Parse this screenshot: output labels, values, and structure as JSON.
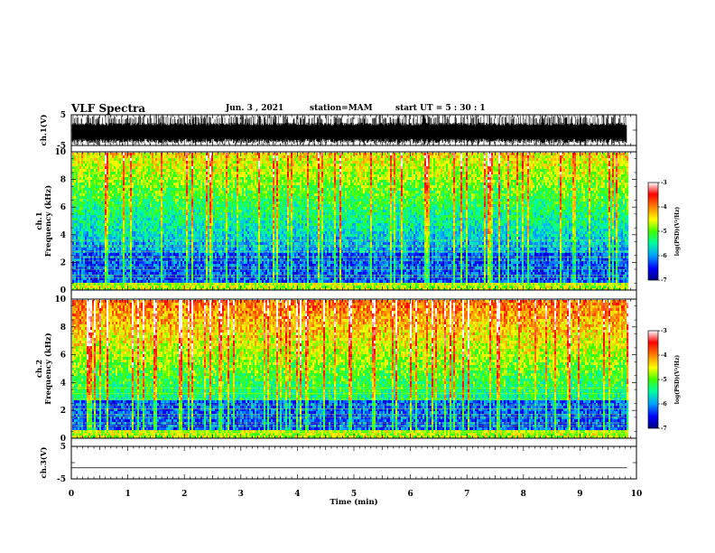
{
  "header": {
    "title": "VLF Spectra",
    "date": "Jun. 3 , 2021",
    "station": "station=MAM",
    "start": "start UT = 5 : 30 : 1"
  },
  "chart_data": [
    {
      "type": "line",
      "panel": "ch1-waveform",
      "ylabel": "ch.1(V)",
      "yticks": [
        "5",
        "-5"
      ],
      "ylim": [
        -5,
        5
      ],
      "xlim": [
        0,
        10
      ],
      "x_data_extent": [
        0,
        9.83
      ]
    },
    {
      "type": "heatmap",
      "panel": "ch1-spectrogram",
      "ylabel_top": "ch.1",
      "ylabel": "Frequency (kHz)",
      "yticks": [
        "0",
        "2",
        "4",
        "6",
        "8",
        "10"
      ],
      "ylim": [
        0,
        10
      ],
      "xlim": [
        0,
        10
      ],
      "colorbar": {
        "label": "log(PSD)(V²/Hz)",
        "ticks": [
          "-3",
          "-4",
          "-5",
          "-6",
          "-7"
        ],
        "range": [
          -7,
          -3
        ],
        "colors": [
          "#000080",
          "#0000ff",
          "#00a0ff",
          "#00ffa0",
          "#40ff00",
          "#ffff00",
          "#ff8000",
          "#ff0000",
          "#ffffff"
        ]
      }
    },
    {
      "type": "heatmap",
      "panel": "ch2-spectrogram",
      "ylabel_top": "ch.2",
      "ylabel": "Frequency (kHz)",
      "yticks": [
        "0",
        "2",
        "4",
        "6",
        "8",
        "10"
      ],
      "ylim": [
        0,
        10
      ],
      "xlim": [
        0,
        10
      ],
      "colorbar": {
        "label": "log(PSD)(V²/Hz)",
        "ticks": [
          "-3",
          "-4",
          "-5",
          "-6",
          "-7"
        ],
        "range": [
          -7,
          -3
        ],
        "colors": [
          "#000080",
          "#0000ff",
          "#00a0ff",
          "#00ffa0",
          "#40ff00",
          "#ffff00",
          "#ff8000",
          "#ff0000",
          "#ffffff"
        ]
      }
    },
    {
      "type": "line",
      "panel": "ch3-waveform",
      "ylabel": "ch.3(V)",
      "yticks": [
        "5",
        "-5"
      ],
      "ylim": [
        -5,
        5
      ],
      "xlim": [
        0,
        10
      ],
      "values": [
        -1.6,
        -1.6
      ],
      "x": [
        0,
        9.83
      ]
    }
  ],
  "xaxis": {
    "label": "Time (min)",
    "ticks": [
      "0",
      "1",
      "2",
      "3",
      "4",
      "5",
      "6",
      "7",
      "8",
      "9",
      "10"
    ]
  }
}
